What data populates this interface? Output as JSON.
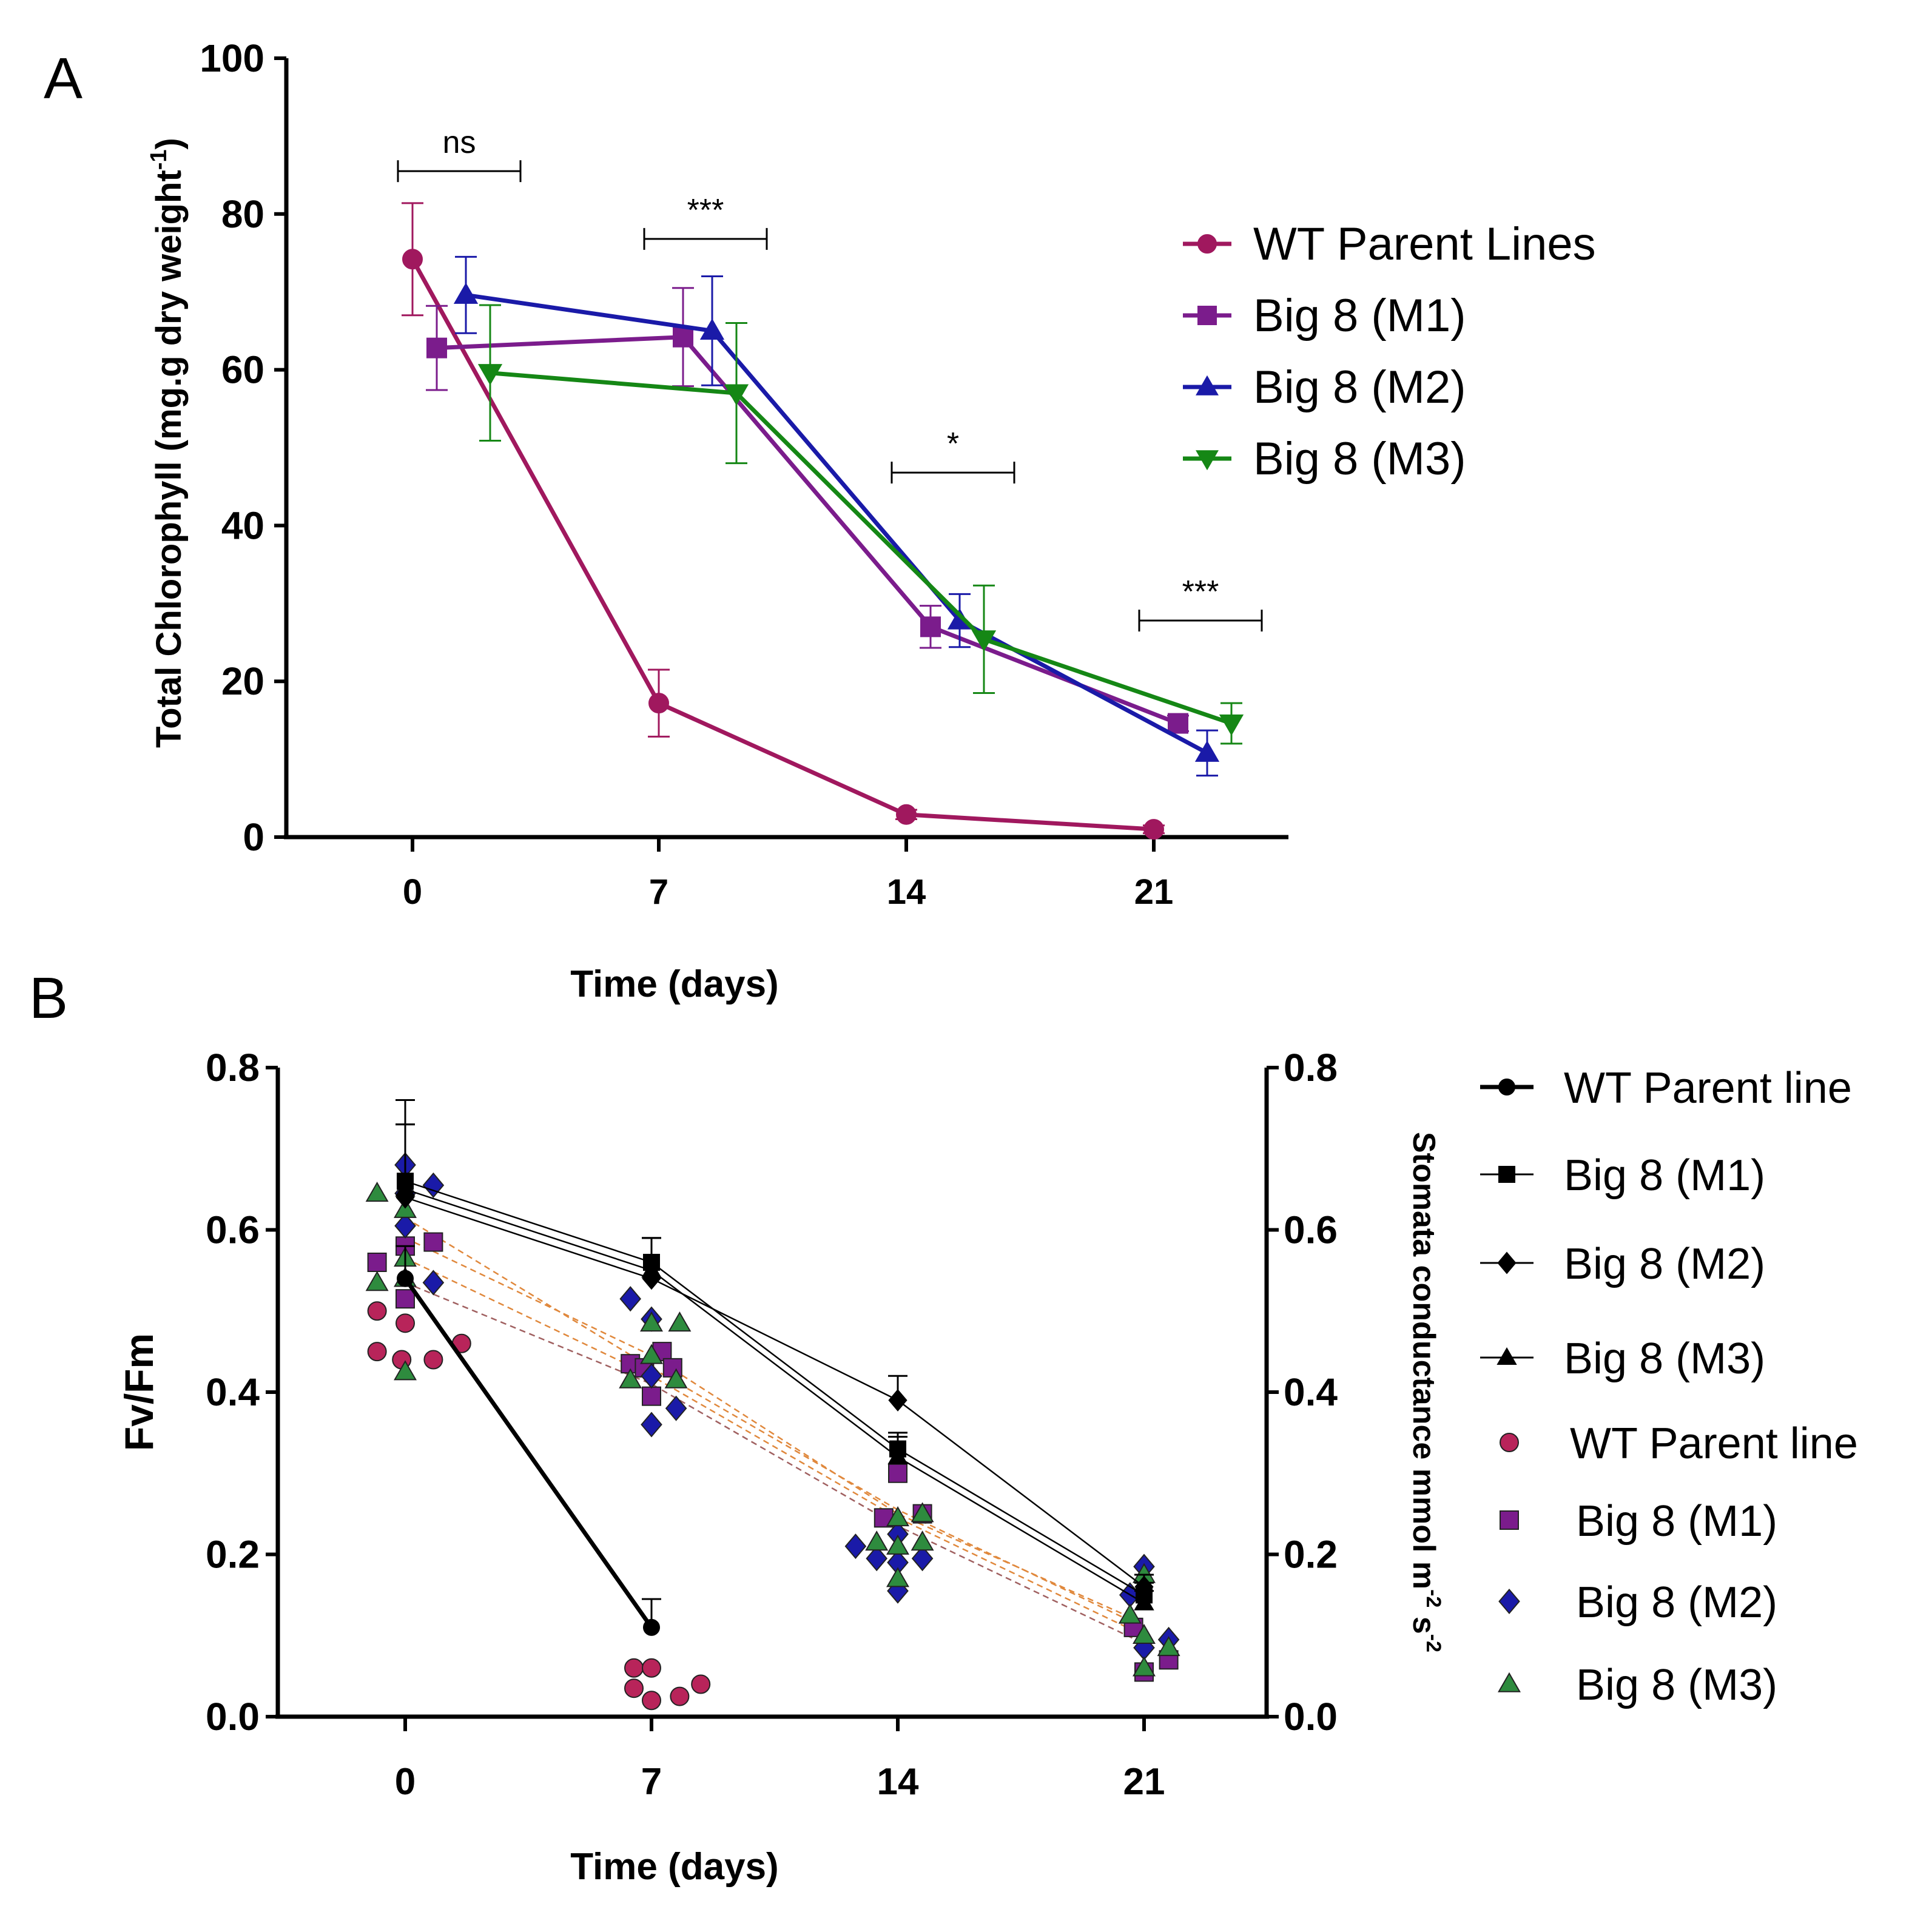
{
  "chart_data": [
    {
      "type": "line",
      "panel_label": "A",
      "ylabel": "Total Chlorophyll (mg.g dry weight",
      "ylabel_sup": "-1",
      "ylabel_close": ")",
      "xlabel": "Time (days)",
      "ylim": [
        0,
        100
      ],
      "yticks": [
        "0",
        "20",
        "40",
        "60",
        "80",
        "100"
      ],
      "ytick_values": [
        0,
        20,
        40,
        60,
        80,
        100
      ],
      "categories": [
        "0",
        "7",
        "14",
        "21"
      ],
      "series": [
        {
          "name": "WT Parent Lines",
          "color": "#a0185e",
          "marker": "circle",
          "values": [
            74.2,
            17.2,
            2.9,
            1.0
          ],
          "errors": [
            7.2,
            4.3,
            0.6,
            0.5
          ]
        },
        {
          "name": "Big 8 (M1)",
          "color": "#7b1c8c",
          "marker": "square",
          "values": [
            62.8,
            64.2,
            27.0,
            14.6
          ],
          "errors": [
            5.4,
            6.3,
            2.7,
            1.0
          ]
        },
        {
          "name": "Big 8 (M2)",
          "color": "#1a1aa8",
          "marker": "triangle-up",
          "values": [
            69.6,
            65.0,
            27.8,
            10.8
          ],
          "errors": [
            4.9,
            7.0,
            3.4,
            2.9
          ]
        },
        {
          "name": "Big 8 (M3)",
          "color": "#158715",
          "marker": "triangle-down",
          "values": [
            59.6,
            57.0,
            25.4,
            14.6
          ],
          "errors": [
            8.7,
            9.0,
            6.9,
            2.6
          ]
        }
      ],
      "significance": [
        {
          "label": "ns",
          "day": "0",
          "level": 85.5
        },
        {
          "label": "***",
          "day": "7",
          "level": 76.8
        },
        {
          "label": "*",
          "day": "14",
          "level": 46.8
        },
        {
          "label": "***",
          "day": "21",
          "level": 27.8
        }
      ]
    },
    {
      "type": "line+scatter",
      "panel_label": "B",
      "ylabel": "Fv/Fm",
      "ylabel_right": "Stomata conductance mmol m",
      "ylabel_right_sup1": "-2",
      "ylabel_right_mid": " s",
      "ylabel_right_sup2": "-2",
      "xlabel": "Time (days)",
      "ylim": [
        0,
        0.8
      ],
      "yticks": [
        "0.0",
        "0.2",
        "0.4",
        "0.6",
        "0.8"
      ],
      "ytick_values": [
        0,
        0.2,
        0.4,
        0.6,
        0.8
      ],
      "categories": [
        "0",
        "7",
        "14",
        "21"
      ],
      "line_series": [
        {
          "name": "WT Parent line",
          "color": "#000000",
          "marker": "circle",
          "values": [
            0.54,
            0.11
          ],
          "errors": [
            0.04,
            0.035
          ]
        },
        {
          "name": "Big 8 (M1)",
          "color": "#000000",
          "marker": "square",
          "values": [
            0.66,
            0.56,
            0.33,
            0.15
          ],
          "errors": [
            0.07,
            0.03,
            0.02,
            0.015
          ]
        },
        {
          "name": "Big 8 (M2)",
          "color": "#000000",
          "marker": "diamond",
          "values": [
            0.64,
            0.54,
            0.39,
            0.16
          ],
          "errors": [
            0.12,
            0.05,
            0.03,
            0.015
          ]
        },
        {
          "name": "Big 8 (M3)",
          "color": "#000000",
          "marker": "triangle-up",
          "values": [
            0.65,
            0.55,
            0.32,
            0.14
          ],
          "errors": [
            0.08,
            0.04,
            0.025,
            0.015
          ]
        }
      ],
      "scatter_series": [
        {
          "name": "WT Parent line",
          "color": "#b8245a",
          "marker": "circle",
          "points": [
            [
              -0.8,
              0.5
            ],
            [
              0,
              0.485
            ],
            [
              -0.8,
              0.45
            ],
            [
              -0.1,
              0.44
            ],
            [
              0.8,
              0.44
            ],
            [
              1.6,
              0.46
            ],
            [
              6.5,
              0.06
            ],
            [
              7,
              0.06
            ],
            [
              6.5,
              0.035
            ],
            [
              7,
              0.02
            ],
            [
              7.8,
              0.025
            ],
            [
              8.4,
              0.04
            ]
          ]
        },
        {
          "name": "Big 8 (M1)",
          "color": "#7b1c8c",
          "marker": "square",
          "points": [
            [
              -0.8,
              0.56
            ],
            [
              0,
              0.58
            ],
            [
              0.8,
              0.585
            ],
            [
              0,
              0.515
            ],
            [
              6.4,
              0.435
            ],
            [
              6.8,
              0.43
            ],
            [
              7.3,
              0.45
            ],
            [
              7.6,
              0.43
            ],
            [
              7,
              0.395
            ],
            [
              13.6,
              0.245
            ],
            [
              14,
              0.3
            ],
            [
              14.7,
              0.25
            ],
            [
              20.7,
              0.11
            ],
            [
              21,
              0.055
            ],
            [
              21.7,
              0.07
            ]
          ]
        },
        {
          "name": "Big 8 (M2)",
          "color": "#1a1aa8",
          "marker": "diamond",
          "points": [
            [
              0,
              0.68
            ],
            [
              0,
              0.645
            ],
            [
              0.8,
              0.655
            ],
            [
              0,
              0.605
            ],
            [
              0.8,
              0.535
            ],
            [
              6.4,
              0.515
            ],
            [
              7,
              0.49
            ],
            [
              7,
              0.42
            ],
            [
              7,
              0.36
            ],
            [
              7.7,
              0.38
            ],
            [
              12.8,
              0.21
            ],
            [
              13.4,
              0.195
            ],
            [
              14,
              0.225
            ],
            [
              14,
              0.19
            ],
            [
              14,
              0.155
            ],
            [
              14.7,
              0.195
            ],
            [
              20.6,
              0.15
            ],
            [
              21,
              0.185
            ],
            [
              21,
              0.085
            ],
            [
              21.7,
              0.095
            ]
          ]
        },
        {
          "name": "Big 8 (M3)",
          "color": "#2e8b3e",
          "marker": "triangle-up",
          "points": [
            [
              -0.8,
              0.645
            ],
            [
              -0.8,
              0.535
            ],
            [
              0,
              0.625
            ],
            [
              0,
              0.565
            ],
            [
              0,
              0.54
            ],
            [
              0,
              0.425
            ],
            [
              6.4,
              0.415
            ],
            [
              7,
              0.485
            ],
            [
              7,
              0.445
            ],
            [
              7.8,
              0.485
            ],
            [
              7.7,
              0.415
            ],
            [
              13.4,
              0.215
            ],
            [
              14,
              0.245
            ],
            [
              14,
              0.21
            ],
            [
              14,
              0.17
            ],
            [
              14.7,
              0.25
            ],
            [
              14.7,
              0.215
            ],
            [
              20.6,
              0.125
            ],
            [
              21,
              0.175
            ],
            [
              21,
              0.1
            ],
            [
              21,
              0.06
            ],
            [
              21.7,
              0.085
            ]
          ]
        }
      ],
      "trend_lines": [
        {
          "color": "#e0883c",
          "values": [
            0.615,
            0.43,
            0.255,
            0.11
          ]
        },
        {
          "color": "#e0883c",
          "values": [
            0.59,
            0.445,
            0.25,
            0.115
          ]
        },
        {
          "color": "#e0883c",
          "values": [
            0.565,
            0.42,
            0.245,
            0.1
          ]
        },
        {
          "color": "#a06060",
          "values": [
            0.535,
            0.41,
            0.235,
            0.09
          ]
        }
      ]
    }
  ]
}
